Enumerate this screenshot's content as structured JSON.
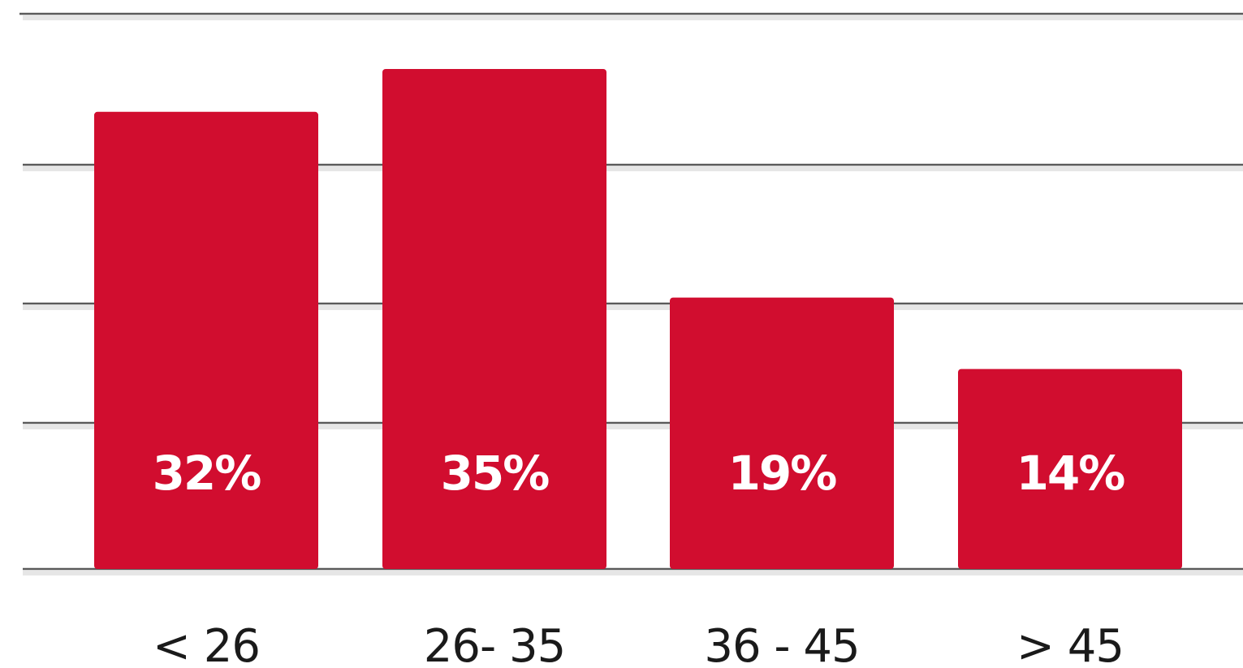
{
  "colors": {
    "bar": "#d10d2f",
    "value_text": "#ffffff",
    "category_text": "#1a1a1a",
    "grid": "#5a5a5a",
    "background": "#ffffff"
  },
  "chart_data": {
    "type": "bar",
    "title": "",
    "xlabel": "",
    "ylabel": "",
    "categories": [
      "< 26",
      "26- 35",
      "36 - 45",
      "> 45"
    ],
    "values": [
      32,
      35,
      19,
      14
    ],
    "value_labels": [
      "32%",
      "35%",
      "19%",
      "14%"
    ],
    "unit": "%",
    "ylim": [
      0,
      40
    ],
    "grid": true,
    "legend": "none"
  }
}
